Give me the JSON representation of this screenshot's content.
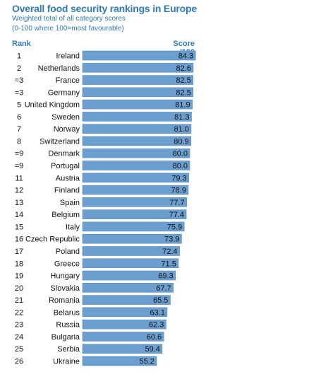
{
  "title": "Overall food security rankings in Europe",
  "subtitle_1": "Weighted total of all category scores",
  "subtitle_2": "(0-100 where 100=most favourable)",
  "rank_header": "Rank",
  "score_header": "Score /100",
  "colors": {
    "bar": "#6b9fcf",
    "bar_edge": "#5a8cbd",
    "accent": "#2f7bbd"
  },
  "chart_data": {
    "type": "bar",
    "orientation": "horizontal",
    "title": "Overall food security rankings in Europe",
    "ranks": [
      "1",
      "2",
      "=3",
      "=3",
      "5",
      "6",
      "7",
      "8",
      "=9",
      "=9",
      "11",
      "12",
      "13",
      "14",
      "15",
      "16",
      "17",
      "18",
      "19",
      "20",
      "21",
      "22",
      "23",
      "24",
      "25",
      "26"
    ],
    "categories": [
      "Ireland",
      "Netherlands",
      "France",
      "Germany",
      "United Kingdom",
      "Sweden",
      "Norway",
      "Switzerland",
      "Denmark",
      "Portugal",
      "Austria",
      "Finland",
      "Spain",
      "Belgium",
      "Italy",
      "Czech Republic",
      "Poland",
      "Greece",
      "Hungary",
      "Slovakia",
      "Romania",
      "Belarus",
      "Russia",
      "Bulgaria",
      "Serbia",
      "Ukraine"
    ],
    "values": [
      84.3,
      82.6,
      82.5,
      82.5,
      81.9,
      81.3,
      81.0,
      80.9,
      80.0,
      80.0,
      79.3,
      78.9,
      77.7,
      77.4,
      75.9,
      73.9,
      72.4,
      71.5,
      69.3,
      67.7,
      65.5,
      63.1,
      62.3,
      60.6,
      59.4,
      55.2
    ],
    "value_labels": [
      "84.3",
      "82.6",
      "82.5",
      "82.5",
      "81.9",
      "81.3",
      "81.0",
      "80.9",
      "80.0",
      "80.0",
      "79.3",
      "78.9",
      "77.7",
      "77.4",
      "75.9",
      "73.9",
      "72.4",
      "71.5",
      "69.3",
      "67.7",
      "65.5",
      "63.1",
      "62.3",
      "60.6",
      "59.4",
      "55.2"
    ]
  }
}
